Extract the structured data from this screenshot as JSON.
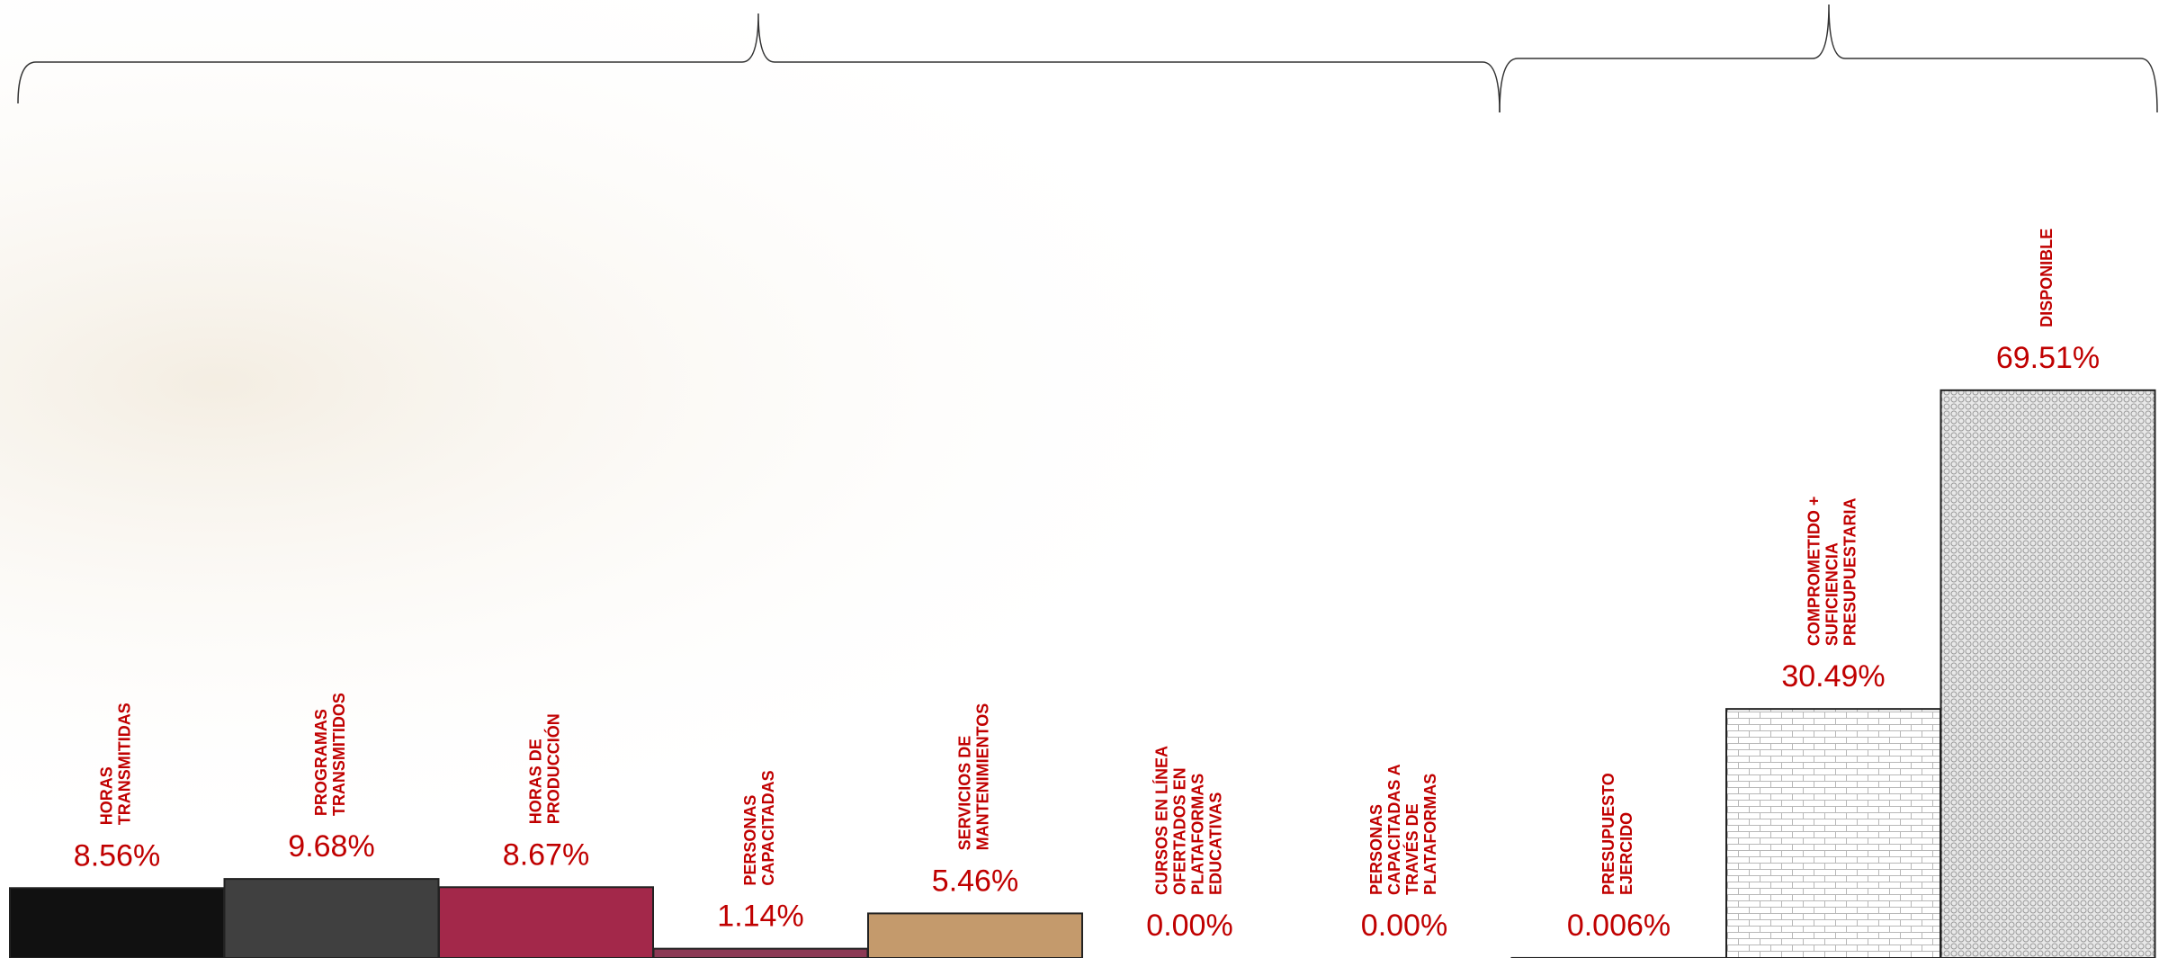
{
  "chart_data": {
    "type": "bar",
    "categories": [
      [
        "HORAS",
        "TRANSMITIDAS"
      ],
      [
        "PROGRAMAS",
        "TRANSMITIDOS"
      ],
      [
        "HORAS DE",
        "PRODUCCIÓN"
      ],
      [
        "PERSONAS",
        "CAPACITADAS"
      ],
      [
        "SERVICIOS DE",
        "MANTENIMIENTOS"
      ],
      [
        "CURSOS EN LÍNEA",
        "OFERTADOS  EN",
        "PLATAFORMAS",
        "EDUCATIVAS"
      ],
      [
        "PERSONAS",
        "CAPACITADAS A",
        "TRAVÉS DE",
        "PLATAFORMAS"
      ],
      [
        "PRESUPUESTO",
        "EJERCIDO"
      ],
      [
        "COMPROMETIDO +",
        "SUFICIENCIA",
        "PRESUPUESTARIA"
      ],
      [
        "DISPONIBLE"
      ]
    ],
    "values": [
      8.56,
      9.68,
      8.67,
      1.14,
      5.46,
      0.0,
      0.0,
      0.006,
      30.49,
      69.51
    ],
    "value_labels": [
      "8.56%",
      "9.68%",
      "8.67%",
      "1.14%",
      "5.46%",
      "0.00%",
      "0.00%",
      "0.006%",
      "30.49%",
      "69.51%"
    ],
    "colors": [
      "#111111",
      "#404040",
      "#a3284a",
      "#8c3a55",
      "#c49a6c",
      "#c49a6c",
      "#c49a6c",
      "#c49a6c",
      "#ffffff",
      "#d0d0d0"
    ]
  }
}
